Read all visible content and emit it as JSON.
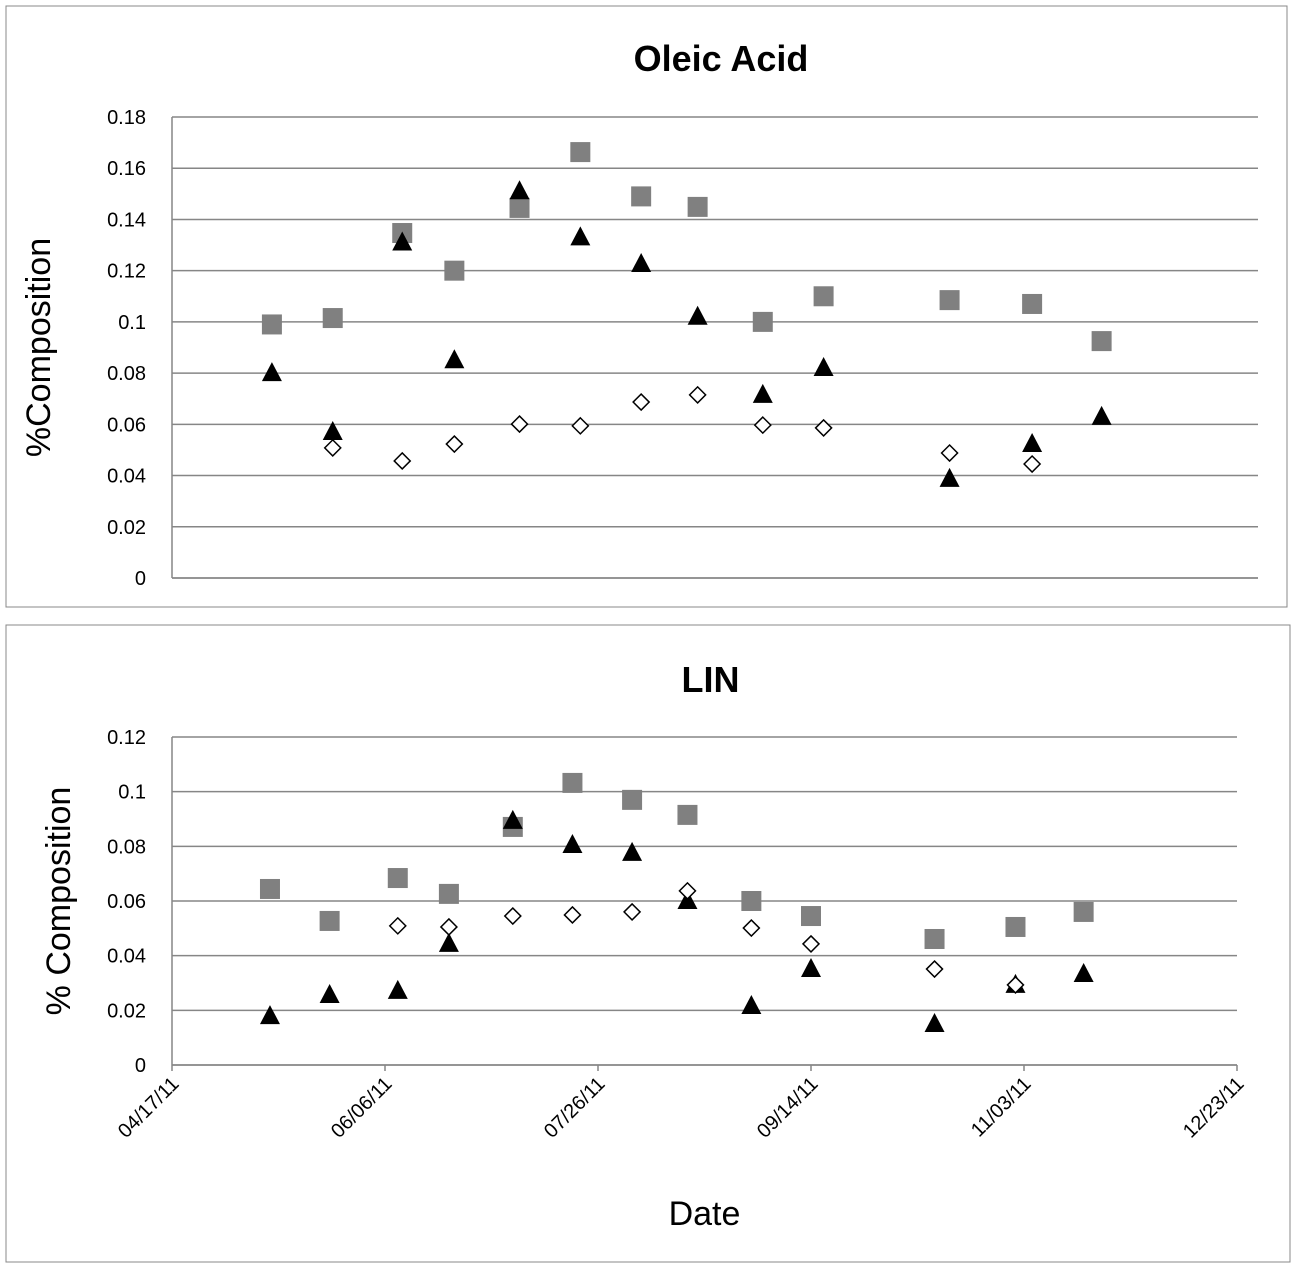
{
  "chart_data": [
    {
      "type": "scatter",
      "title": "Oleic Acid",
      "y_label": "%Composition",
      "x": [
        "2011-05-10",
        "2011-05-24",
        "2011-06-09",
        "2011-06-21",
        "2011-07-06",
        "2011-07-20",
        "2011-08-03",
        "2011-08-16",
        "2011-08-31",
        "2011-09-14",
        "2011-10-13",
        "2011-11-01",
        "2011-11-17"
      ],
      "series": [
        {
          "color": "#808080",
          "marker": "square",
          "values": [
            0.099,
            0.1015,
            0.1347,
            0.12,
            0.1445,
            0.1663,
            0.149,
            0.1449,
            0.1,
            0.11,
            0.1085,
            0.107,
            0.0925
          ]
        },
        {
          "color": "#000000",
          "marker": "triangle",
          "values": [
            0.08,
            0.057,
            0.131,
            0.085,
            0.151,
            0.133,
            0.1226,
            0.102,
            0.0715,
            0.082,
            0.0387,
            0.0523,
            0.0629
          ]
        },
        {
          "color": "#ffffff",
          "marker": "diamond",
          "values": [
            null,
            0.0508,
            0.0457,
            0.0523,
            0.0601,
            0.0594,
            0.0687,
            0.0715,
            0.0597,
            0.0586,
            0.0488,
            0.0445,
            null
          ]
        }
      ],
      "xlim": [
        "2011-04-17",
        "2011-12-23"
      ],
      "ylim": [
        0,
        0.18
      ],
      "yticks": [
        0,
        0.02,
        0.04,
        0.06,
        0.08,
        0.1,
        0.12,
        0.14,
        0.16,
        0.18
      ],
      "grid": true
    },
    {
      "type": "scatter",
      "title": "LIN",
      "y_label": "% Composition",
      "x_label": "Date",
      "x": [
        "2011-05-10",
        "2011-05-24",
        "2011-06-09",
        "2011-06-21",
        "2011-07-06",
        "2011-07-20",
        "2011-08-03",
        "2011-08-16",
        "2011-08-31",
        "2011-09-14",
        "2011-10-13",
        "2011-11-01",
        "2011-11-17"
      ],
      "series": [
        {
          "color": "#808080",
          "marker": "square",
          "values": [
            0.0644,
            0.0527,
            0.0684,
            0.0626,
            0.0871,
            0.1032,
            0.097,
            0.0915,
            0.06,
            0.0545,
            0.0461,
            0.0505,
            0.056
          ]
        },
        {
          "color": "#000000",
          "marker": "triangle",
          "values": [
            0.0179,
            0.0256,
            0.0271,
            0.0443,
            0.0893,
            0.0805,
            0.0776,
            0.06,
            0.0216,
            0.0351,
            0.015,
            0.0293,
            0.0333
          ]
        },
        {
          "color": "#ffffff",
          "marker": "diamond",
          "values": [
            null,
            null,
            0.0509,
            0.0505,
            0.0545,
            0.0549,
            0.056,
            0.0637,
            0.0501,
            0.0443,
            0.0351,
            0.0293,
            null
          ]
        }
      ],
      "xlim": [
        "2011-04-17",
        "2011-12-23"
      ],
      "ylim": [
        0,
        0.12
      ],
      "yticks": [
        0,
        0.02,
        0.04,
        0.06,
        0.08,
        0.1,
        0.12
      ],
      "xticks": [
        {
          "value": "2011-04-17",
          "label": "04/17/11"
        },
        {
          "value": "2011-06-06",
          "label": "06/06/11"
        },
        {
          "value": "2011-07-26",
          "label": "07/26/11"
        },
        {
          "value": "2011-09-14",
          "label": "09/14/11"
        },
        {
          "value": "2011-11-03",
          "label": "11/03/11"
        },
        {
          "value": "2011-12-23",
          "label": "12/23/11"
        }
      ],
      "grid": true
    }
  ]
}
